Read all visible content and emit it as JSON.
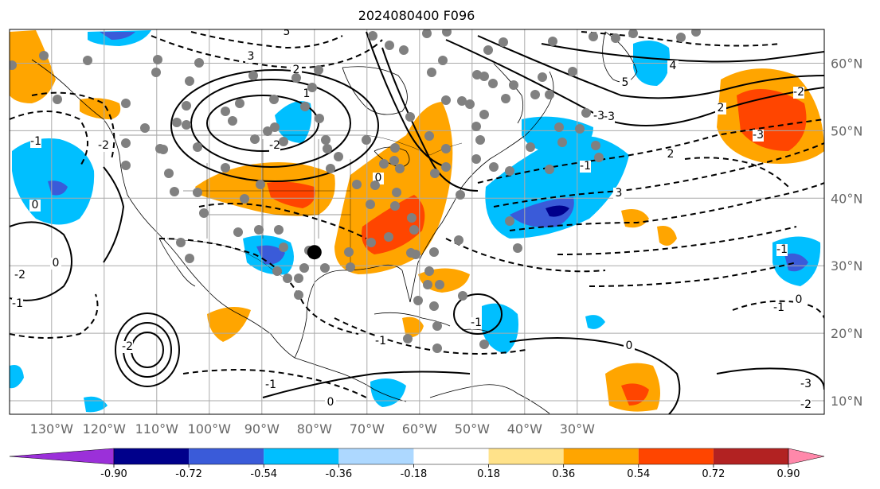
{
  "title": "2024080400 F096",
  "map": {
    "projection": "cylindrical",
    "lon_range": [
      -138,
      17
    ],
    "lat_range": [
      8,
      65
    ],
    "lon_ticks": [
      {
        "label": "130°W",
        "lon": -130
      },
      {
        "label": "120°W",
        "lon": -120
      },
      {
        "label": "110°W",
        "lon": -110
      },
      {
        "label": "100°W",
        "lon": -100
      },
      {
        "label": "90°W",
        "lon": -90
      },
      {
        "label": "80°W",
        "lon": -80
      },
      {
        "label": "70°W",
        "lon": -70
      },
      {
        "label": "60°W",
        "lon": -60
      },
      {
        "label": "50°W",
        "lon": -50
      },
      {
        "label": "40°W",
        "lon": -40
      },
      {
        "label": "30°W",
        "lon": -30
      }
    ],
    "lat_ticks": [
      {
        "label": "60°N",
        "lat": 60
      },
      {
        "label": "50°N",
        "lat": 50
      },
      {
        "label": "40°N",
        "lat": 40
      },
      {
        "label": "30°N",
        "lat": 30
      },
      {
        "label": "20°N",
        "lat": 20
      },
      {
        "label": "10°N",
        "lat": 10
      }
    ],
    "grid": true,
    "contour_labels": [
      "5",
      "3",
      "2",
      "1",
      "-2",
      "-3",
      "4",
      "3",
      "2",
      "2",
      "-3",
      "-2",
      "-1",
      "0",
      "-2",
      "0",
      "-1",
      "0",
      "-1",
      "-1",
      "-3",
      "-2",
      "0",
      "-3",
      "-2",
      "-1",
      "0",
      "-1",
      "0",
      "-1",
      "-1",
      "-2",
      "5"
    ],
    "marker": {
      "lon": -80,
      "lat": 32
    }
  },
  "colorbar": {
    "extend": "both",
    "bounds": [
      "-0.90",
      "-0.72",
      "-0.54",
      "-0.36",
      "-0.18",
      "0.18",
      "0.36",
      "0.54",
      "0.72",
      "0.90"
    ],
    "colors": [
      "#9b30d9",
      "#00008b",
      "#3a5bd9",
      "#00bfff",
      "#add8ff",
      "#ffffff",
      "#ffe28a",
      "#ffa500",
      "#ff4500",
      "#b22222",
      "#ff88aa"
    ]
  },
  "colors": {
    "grid": "#aaaaaa",
    "coast": "#000000",
    "neg_strong": "#3a5bd9",
    "neg": "#00bfff",
    "pos": "#ffa500",
    "pos_strong": "#ff4500"
  }
}
